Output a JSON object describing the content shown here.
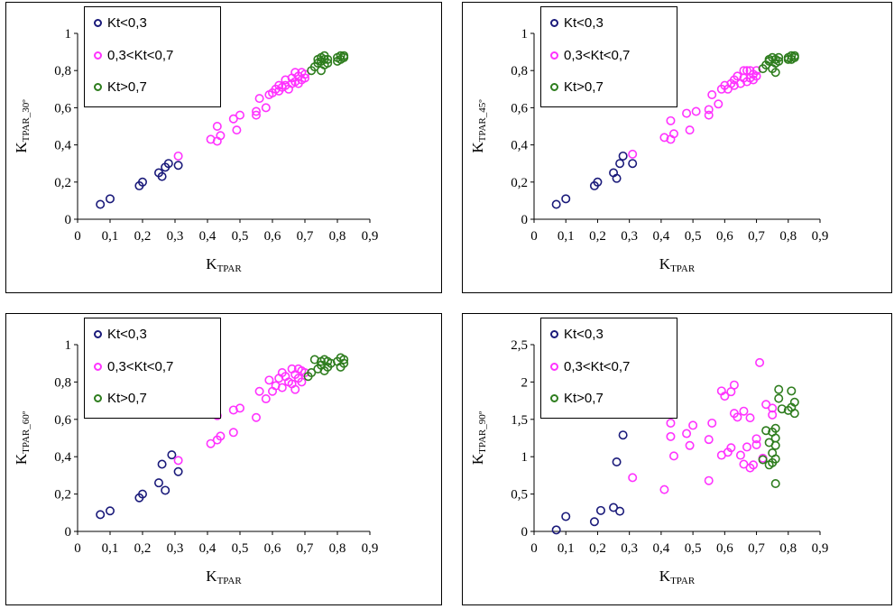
{
  "legend": {
    "items": [
      "Kt<0,3",
      "0,3<Kt<0,7",
      "Kt>0,7"
    ],
    "colors": [
      "#1a1a7a",
      "#ff33ff",
      "#2e7d1e"
    ]
  },
  "chart_data": [
    {
      "type": "scatter",
      "xlabel": "K",
      "xlabel_sub": "TPAR",
      "ylabel": "K",
      "ylabel_sub": "TPAR_30º",
      "xlim": [
        0,
        0.9
      ],
      "ylim": [
        0,
        1
      ],
      "xticks": [
        "0",
        "0,1",
        "0,2",
        "0,3",
        "0,4",
        "0,5",
        "0,6",
        "0,7",
        "0,8",
        "0,9"
      ],
      "yticks": [
        "0",
        "0,2",
        "0,4",
        "0,6",
        "0,8",
        "1"
      ],
      "series": [
        {
          "name": "Kt<0,3",
          "color": "#1a1a7a",
          "x": [
            0.07,
            0.1,
            0.19,
            0.2,
            0.25,
            0.26,
            0.27,
            0.28,
            0.31
          ],
          "y": [
            0.08,
            0.11,
            0.18,
            0.2,
            0.25,
            0.23,
            0.28,
            0.3,
            0.29
          ]
        },
        {
          "name": "0,3<Kt<0,7",
          "color": "#ff33ff",
          "x": [
            0.31,
            0.41,
            0.43,
            0.43,
            0.44,
            0.48,
            0.49,
            0.5,
            0.55,
            0.55,
            0.56,
            0.58,
            0.59,
            0.6,
            0.61,
            0.62,
            0.62,
            0.63,
            0.64,
            0.64,
            0.65,
            0.66,
            0.66,
            0.67,
            0.67,
            0.68,
            0.68,
            0.69,
            0.69,
            0.7,
            0.7
          ],
          "y": [
            0.34,
            0.43,
            0.5,
            0.42,
            0.45,
            0.54,
            0.48,
            0.56,
            0.58,
            0.56,
            0.65,
            0.6,
            0.67,
            0.68,
            0.7,
            0.72,
            0.69,
            0.71,
            0.75,
            0.72,
            0.7,
            0.73,
            0.76,
            0.79,
            0.74,
            0.73,
            0.77,
            0.75,
            0.79,
            0.76,
            0.78
          ]
        },
        {
          "name": "Kt>0,7",
          "color": "#2e7d1e",
          "x": [
            0.72,
            0.73,
            0.74,
            0.74,
            0.75,
            0.75,
            0.75,
            0.76,
            0.76,
            0.76,
            0.77,
            0.77,
            0.8,
            0.8,
            0.81,
            0.81,
            0.82,
            0.82
          ],
          "y": [
            0.8,
            0.82,
            0.84,
            0.86,
            0.8,
            0.85,
            0.87,
            0.83,
            0.86,
            0.88,
            0.84,
            0.86,
            0.85,
            0.87,
            0.86,
            0.88,
            0.87,
            0.88
          ]
        }
      ]
    },
    {
      "type": "scatter",
      "xlabel": "K",
      "xlabel_sub": "TPAR",
      "ylabel": "K",
      "ylabel_sub": "TPAR_45º",
      "xlim": [
        0,
        0.9
      ],
      "ylim": [
        0,
        1
      ],
      "xticks": [
        "0",
        "0,1",
        "0,2",
        "0,3",
        "0,4",
        "0,5",
        "0,6",
        "0,7",
        "0,8",
        "0,9"
      ],
      "yticks": [
        "0",
        "0,2",
        "0,4",
        "0,6",
        "0,8",
        "1"
      ],
      "series": [
        {
          "name": "Kt<0,3",
          "color": "#1a1a7a",
          "x": [
            0.07,
            0.1,
            0.19,
            0.2,
            0.25,
            0.26,
            0.27,
            0.28,
            0.31
          ],
          "y": [
            0.08,
            0.11,
            0.18,
            0.2,
            0.25,
            0.22,
            0.3,
            0.34,
            0.3
          ]
        },
        {
          "name": "0,3<Kt<0,7",
          "color": "#ff33ff",
          "x": [
            0.31,
            0.41,
            0.43,
            0.43,
            0.44,
            0.48,
            0.49,
            0.51,
            0.55,
            0.55,
            0.56,
            0.58,
            0.59,
            0.6,
            0.61,
            0.62,
            0.63,
            0.63,
            0.64,
            0.65,
            0.66,
            0.66,
            0.67,
            0.67,
            0.68,
            0.68,
            0.69,
            0.69,
            0.7,
            0.7
          ],
          "y": [
            0.35,
            0.44,
            0.53,
            0.43,
            0.46,
            0.57,
            0.48,
            0.58,
            0.59,
            0.56,
            0.67,
            0.62,
            0.7,
            0.72,
            0.7,
            0.73,
            0.75,
            0.72,
            0.77,
            0.73,
            0.76,
            0.8,
            0.74,
            0.8,
            0.76,
            0.8,
            0.75,
            0.78,
            0.8,
            0.77
          ]
        },
        {
          "name": "Kt>0,7",
          "color": "#2e7d1e",
          "x": [
            0.72,
            0.73,
            0.74,
            0.74,
            0.75,
            0.75,
            0.76,
            0.76,
            0.76,
            0.77,
            0.77,
            0.8,
            0.8,
            0.81,
            0.81,
            0.82,
            0.82
          ],
          "y": [
            0.81,
            0.83,
            0.85,
            0.86,
            0.81,
            0.87,
            0.84,
            0.86,
            0.79,
            0.85,
            0.87,
            0.86,
            0.87,
            0.86,
            0.88,
            0.87,
            0.88
          ]
        }
      ]
    },
    {
      "type": "scatter",
      "xlabel": "K",
      "xlabel_sub": "TPAR",
      "ylabel": "K",
      "ylabel_sub": "TPAR_60º",
      "xlim": [
        0,
        0.9
      ],
      "ylim": [
        0,
        1
      ],
      "xticks": [
        "0",
        "0,1",
        "0,2",
        "0,3",
        "0,4",
        "0,5",
        "0,6",
        "0,7",
        "0,8",
        "0,9"
      ],
      "yticks": [
        "0",
        "0,2",
        "0,4",
        "0,6",
        "0,8",
        "1"
      ],
      "series": [
        {
          "name": "Kt<0,3",
          "color": "#1a1a7a",
          "x": [
            0.07,
            0.1,
            0.19,
            0.2,
            0.25,
            0.26,
            0.27,
            0.29,
            0.31
          ],
          "y": [
            0.09,
            0.11,
            0.18,
            0.2,
            0.26,
            0.36,
            0.22,
            0.41,
            0.32
          ]
        },
        {
          "name": "0,3<Kt<0,7",
          "color": "#ff33ff",
          "x": [
            0.31,
            0.41,
            0.43,
            0.43,
            0.44,
            0.48,
            0.48,
            0.5,
            0.55,
            0.56,
            0.58,
            0.59,
            0.6,
            0.61,
            0.62,
            0.63,
            0.63,
            0.64,
            0.65,
            0.66,
            0.66,
            0.67,
            0.67,
            0.68,
            0.68,
            0.69,
            0.69,
            0.7
          ],
          "y": [
            0.38,
            0.47,
            0.62,
            0.49,
            0.51,
            0.65,
            0.53,
            0.66,
            0.61,
            0.75,
            0.71,
            0.81,
            0.75,
            0.78,
            0.82,
            0.85,
            0.77,
            0.83,
            0.8,
            0.87,
            0.79,
            0.84,
            0.76,
            0.87,
            0.82,
            0.8,
            0.86,
            0.85
          ]
        },
        {
          "name": "Kt>0,7",
          "color": "#2e7d1e",
          "x": [
            0.71,
            0.72,
            0.73,
            0.74,
            0.75,
            0.75,
            0.76,
            0.76,
            0.77,
            0.77,
            0.78,
            0.8,
            0.81,
            0.81,
            0.82,
            0.82
          ],
          "y": [
            0.83,
            0.85,
            0.92,
            0.87,
            0.89,
            0.91,
            0.86,
            0.92,
            0.88,
            0.91,
            0.9,
            0.91,
            0.88,
            0.93,
            0.9,
            0.92
          ]
        }
      ]
    },
    {
      "type": "scatter",
      "xlabel": "K",
      "xlabel_sub": "TPAR",
      "ylabel": "K",
      "ylabel_sub": "TPAR_90º",
      "xlim": [
        0,
        0.9
      ],
      "ylim": [
        0,
        2.5
      ],
      "xticks": [
        "0",
        "0,1",
        "0,2",
        "0,3",
        "0,4",
        "0,5",
        "0,6",
        "0,7",
        "0,8",
        "0,9"
      ],
      "yticks": [
        "0",
        "0,5",
        "1",
        "1,5",
        "2",
        "2,5"
      ],
      "series": [
        {
          "name": "Kt<0,3",
          "color": "#1a1a7a",
          "x": [
            0.07,
            0.1,
            0.19,
            0.21,
            0.25,
            0.26,
            0.27,
            0.28
          ],
          "y": [
            0.02,
            0.2,
            0.13,
            0.28,
            0.32,
            0.93,
            0.27,
            1.29
          ]
        },
        {
          "name": "0,3<Kt<0,7",
          "color": "#ff33ff",
          "x": [
            0.31,
            0.41,
            0.43,
            0.43,
            0.44,
            0.48,
            0.49,
            0.5,
            0.55,
            0.55,
            0.56,
            0.59,
            0.59,
            0.6,
            0.61,
            0.62,
            0.62,
            0.63,
            0.63,
            0.64,
            0.65,
            0.66,
            0.66,
            0.67,
            0.68,
            0.68,
            0.69,
            0.7,
            0.7,
            0.71,
            0.72,
            0.73,
            0.75,
            0.75
          ],
          "y": [
            0.72,
            0.56,
            1.45,
            1.27,
            1.01,
            1.31,
            1.15,
            1.42,
            1.23,
            0.68,
            1.45,
            1.88,
            1.02,
            1.81,
            1.06,
            1.87,
            1.12,
            1.96,
            1.58,
            1.53,
            1.02,
            1.61,
            0.9,
            1.13,
            0.85,
            1.52,
            0.89,
            1.24,
            1.16,
            2.26,
            0.98,
            1.7,
            1.56,
            1.65
          ]
        },
        {
          "name": "Kt>0,7",
          "color": "#2e7d1e",
          "x": [
            0.72,
            0.73,
            0.74,
            0.74,
            0.75,
            0.75,
            0.75,
            0.76,
            0.76,
            0.76,
            0.76,
            0.76,
            0.77,
            0.77,
            0.78,
            0.8,
            0.81,
            0.81,
            0.82,
            0.82
          ],
          "y": [
            0.96,
            1.35,
            1.19,
            0.89,
            1.05,
            1.33,
            0.92,
            1.15,
            1.38,
            0.97,
            1.25,
            0.64,
            1.9,
            1.78,
            1.64,
            1.62,
            1.88,
            1.66,
            1.73,
            1.58
          ]
        }
      ]
    }
  ]
}
